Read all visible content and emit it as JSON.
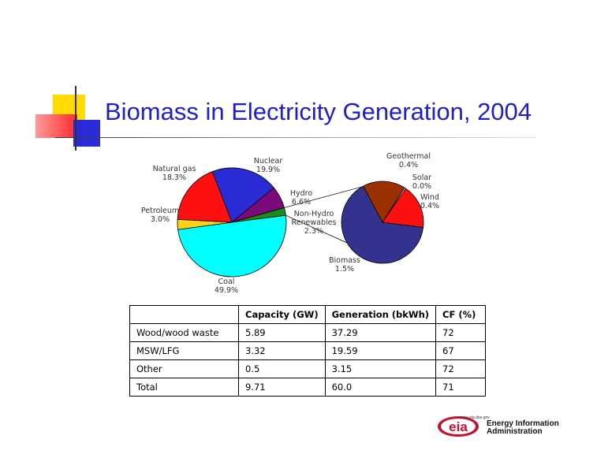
{
  "title": "Biomass in Electricity Generation, 2004",
  "chart_data": [
    {
      "type": "pie",
      "slices": [
        {
          "label": "Nuclear",
          "value": 19.9,
          "pct": "19.9%",
          "color": "#2b2bd6"
        },
        {
          "label": "Hydro",
          "value": 6.6,
          "pct": "6.6%",
          "color": "#7b0a7b"
        },
        {
          "label": "Non-Hydro Renewables",
          "label_lines": [
            "Non-Hydro",
            "Renewables"
          ],
          "value": 2.3,
          "pct": "2.3%",
          "color": "#1a8a1a"
        },
        {
          "label": "Coal",
          "value": 49.9,
          "pct": "49.9%",
          "color": "#00ffff"
        },
        {
          "label": "Petroleum",
          "value": 3.0,
          "pct": "3.0%",
          "color": "#ffd21a"
        },
        {
          "label": "Natural gas",
          "value": 18.3,
          "pct": "18.3%",
          "color": "#ff1010"
        }
      ]
    },
    {
      "type": "pie",
      "slices": [
        {
          "label": "Geothermal",
          "value": 0.4,
          "pct": "0.4%",
          "color": "#9a2f00"
        },
        {
          "label": "Solar",
          "value": 0.0,
          "pct": "0.0%",
          "color": "#f0f0f0"
        },
        {
          "label": "Wind",
          "value": 0.4,
          "pct": "0.4%",
          "color": "#ff1010"
        },
        {
          "label": "Biomass",
          "value": 1.5,
          "pct": "1.5%",
          "color": "#33338f"
        }
      ]
    }
  ],
  "table": {
    "headers": [
      "",
      "Capacity (GW)",
      "Generation (bkWh)",
      "CF (%)"
    ],
    "rows": [
      [
        "Wood/wood waste",
        "5.89",
        "37.29",
        "72"
      ],
      [
        "MSW/LFG",
        "3.32",
        "19.59",
        "67"
      ],
      [
        "Other",
        "0.5",
        "3.15",
        "72"
      ],
      [
        "Total",
        "9.71",
        "60.0",
        "71"
      ]
    ]
  },
  "logo": {
    "mark": "eia",
    "url": "www.eia.doe.gov",
    "line1": "Energy Information",
    "line2": "Administration",
    "colors": {
      "red": "#c8102e",
      "blue": "#1f2a6b"
    }
  },
  "decoration_colors": {
    "yellow": "#ffdb00",
    "red": "#ff2a2a",
    "blue": "#2a2ad8",
    "line": "#999999"
  }
}
